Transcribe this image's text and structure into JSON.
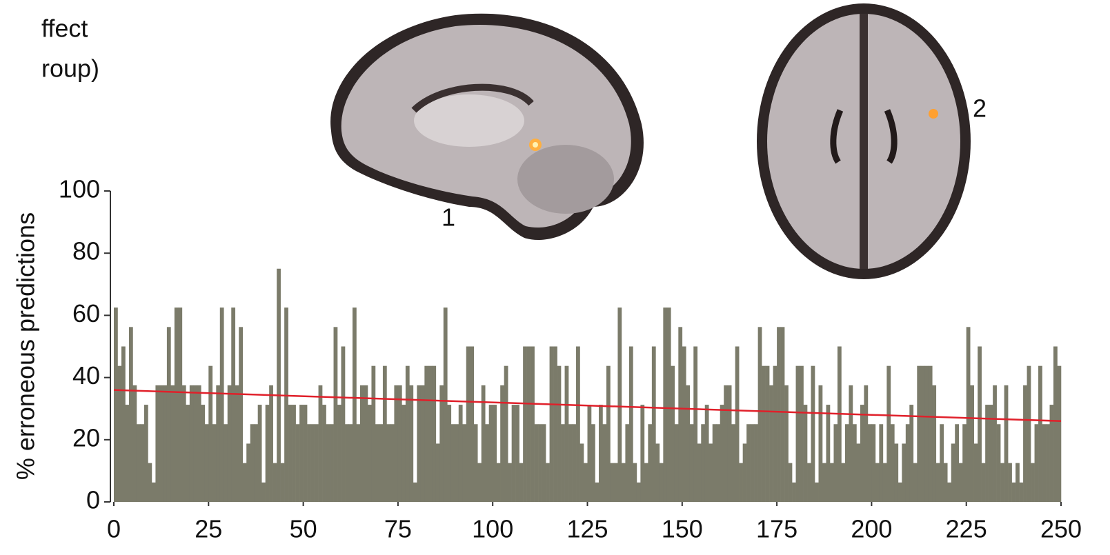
{
  "chart_data": {
    "type": "bar",
    "annotations": [
      "ffect",
      "roup)"
    ],
    "image_labels": [
      "1",
      "2"
    ],
    "y_label": "% erroneous predictions",
    "color": "#7b7b6a",
    "xlim": [
      0,
      250
    ],
    "xticks": [
      0,
      25,
      50,
      75,
      100,
      125,
      150,
      175,
      200,
      225,
      250
    ],
    "ylim": [
      0,
      100
    ],
    "yticks": [
      0,
      20,
      40,
      60,
      80,
      100
    ],
    "x": [
      0,
      1,
      2,
      3,
      4,
      5,
      6,
      7,
      8,
      9,
      10,
      11,
      12,
      13,
      14,
      15,
      16,
      17,
      18,
      19,
      20,
      21,
      22,
      23,
      24,
      25,
      26,
      27,
      28,
      29,
      30,
      31,
      32,
      33,
      34,
      35,
      36,
      37,
      38,
      39,
      40,
      41,
      42,
      43,
      44,
      45,
      46,
      47,
      48,
      49,
      50,
      51,
      52,
      53,
      54,
      55,
      56,
      57,
      58,
      59,
      60,
      61,
      62,
      63,
      64,
      65,
      66,
      67,
      68,
      69,
      70,
      71,
      72,
      73,
      74,
      75,
      76,
      77,
      78,
      79,
      80,
      81,
      82,
      83,
      84,
      85,
      86,
      87,
      88,
      89,
      90,
      91,
      92,
      93,
      94,
      95,
      96,
      97,
      98,
      99,
      100,
      101,
      102,
      103,
      104,
      105,
      106,
      107,
      108,
      109,
      110,
      111,
      112,
      113,
      114,
      115,
      116,
      117,
      118,
      119,
      120,
      121,
      122,
      123,
      124,
      125,
      126,
      127,
      128,
      129,
      130,
      131,
      132,
      133,
      134,
      135,
      136,
      137,
      138,
      139,
      140,
      141,
      142,
      143,
      144,
      145,
      146,
      147,
      148,
      149,
      150,
      151,
      152,
      153,
      154,
      155,
      156,
      157,
      158,
      159,
      160,
      161,
      162,
      163,
      164,
      165,
      166,
      167,
      168,
      169,
      170,
      171,
      172,
      173,
      174,
      175,
      176,
      177,
      178,
      179,
      180,
      181,
      182,
      183,
      184,
      185,
      186,
      187,
      188,
      189,
      190,
      191,
      192,
      193,
      194,
      195,
      196,
      197,
      198,
      199,
      200,
      201,
      202,
      203,
      204,
      205,
      206,
      207,
      208,
      209,
      210,
      211,
      212,
      213,
      214,
      215,
      216,
      217,
      218,
      219,
      220,
      221,
      222,
      223,
      224,
      225,
      226,
      227,
      228,
      229,
      230,
      231,
      232,
      233,
      234,
      235,
      236,
      237,
      238,
      239,
      240,
      241,
      242,
      243,
      244,
      245,
      246,
      247,
      248,
      249
    ],
    "values": [
      62.5,
      43.75,
      50,
      31.25,
      56.25,
      37.5,
      25,
      25,
      31.25,
      12.5,
      6.25,
      37.5,
      37.5,
      37.5,
      56.25,
      37.5,
      62.5,
      62.5,
      37.5,
      31.25,
      37.5,
      37.5,
      37.5,
      31.25,
      25,
      43.75,
      25,
      37.5,
      62.5,
      25,
      37.5,
      62.5,
      37.5,
      56.25,
      12.5,
      18.75,
      25,
      25,
      31.25,
      6.25,
      31.25,
      37.5,
      12.5,
      75,
      12.5,
      62.5,
      31.25,
      31.25,
      25,
      31.25,
      31.25,
      25,
      25,
      25,
      37.5,
      31.25,
      25,
      25,
      56.25,
      31.25,
      50,
      25,
      25,
      62.5,
      25,
      37.5,
      37.5,
      31.25,
      43.75,
      25,
      25,
      43.75,
      25,
      25,
      37.5,
      37.5,
      31.25,
      43.75,
      37.5,
      6.25,
      37.5,
      37.5,
      43.75,
      43.75,
      43.75,
      18.75,
      37.5,
      62.5,
      31.25,
      25,
      25,
      31.25,
      25,
      50,
      50,
      25,
      12.5,
      37.5,
      25,
      31.25,
      31.25,
      12.5,
      37.5,
      43.75,
      12.5,
      31.25,
      31.25,
      12.5,
      50,
      50,
      50,
      25,
      25,
      25,
      12.5,
      50,
      50,
      43.75,
      25,
      43.75,
      25,
      25,
      50,
      18.75,
      12.5,
      31.25,
      25,
      6.25,
      31.25,
      25,
      43.75,
      12.5,
      12.5,
      62.5,
      12.5,
      25,
      50,
      12.5,
      6.25,
      31.25,
      12.5,
      25,
      50,
      18.75,
      12.5,
      62.5,
      62.5,
      43.75,
      25,
      56.25,
      50,
      37.5,
      25,
      50,
      18.75,
      25,
      31.25,
      18.75,
      25,
      25,
      31.25,
      37.5,
      37.5,
      25,
      50,
      12.5,
      18.75,
      25,
      25,
      25,
      56.25,
      43.75,
      43.75,
      37.5,
      43.75,
      56.25,
      56.25,
      37.5,
      12.5,
      6.25,
      43.75,
      43.75,
      31.25,
      12.5,
      43.75,
      6.25,
      37.5,
      12.5,
      31.25,
      12.5,
      25,
      50,
      12.5,
      25,
      37.5,
      25,
      18.75,
      31.25,
      37.5,
      25,
      25,
      12.5,
      25,
      12.5,
      43.75,
      25,
      18.75,
      6.25,
      18.75,
      25,
      31.25,
      12.5,
      43.75,
      43.75,
      43.75,
      43.75,
      37.5,
      12.5,
      25,
      12.5,
      6.25,
      18.75,
      25,
      12.5,
      25,
      56.25,
      37.5,
      18.75,
      50,
      12.5,
      31.25,
      31.25,
      37.5,
      25,
      12.5,
      37.5,
      12.5,
      6.25,
      12.5,
      6.25,
      37.5,
      43.75,
      12.5,
      25,
      43.75,
      25,
      25,
      31.25,
      50,
      43.75
    ],
    "trend_line": {
      "x": [
        0,
        250
      ],
      "values": [
        36,
        26
      ],
      "color": "#e0202a"
    }
  }
}
